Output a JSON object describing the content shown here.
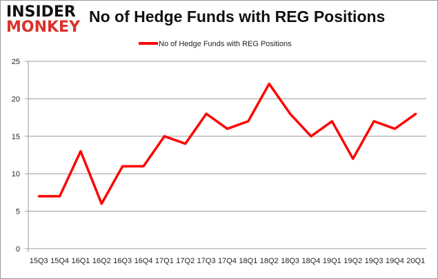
{
  "logo": {
    "line1": "INSIDER",
    "line2": "MONKEY"
  },
  "chart_data": {
    "type": "line",
    "title": "No of Hedge Funds with REG Positions",
    "categories": [
      "15Q3",
      "15Q4",
      "16Q1",
      "16Q2",
      "16Q3",
      "16Q4",
      "17Q1",
      "17Q2",
      "17Q3",
      "17Q4",
      "18Q1",
      "18Q2",
      "18Q3",
      "18Q4",
      "19Q1",
      "19Q2",
      "19Q3",
      "19Q4",
      "20Q1"
    ],
    "series": [
      {
        "name": "No of Hedge Funds with REG Positions",
        "values": [
          7,
          7,
          13,
          6,
          11,
          11,
          15,
          14,
          18,
          16,
          17,
          22,
          18,
          15,
          17,
          12,
          17,
          16,
          18
        ],
        "color": "#ff0000"
      }
    ],
    "ylim": [
      0,
      25
    ],
    "yticks": [
      0,
      5,
      10,
      15,
      20,
      25
    ],
    "grid": true,
    "legend": "top"
  }
}
